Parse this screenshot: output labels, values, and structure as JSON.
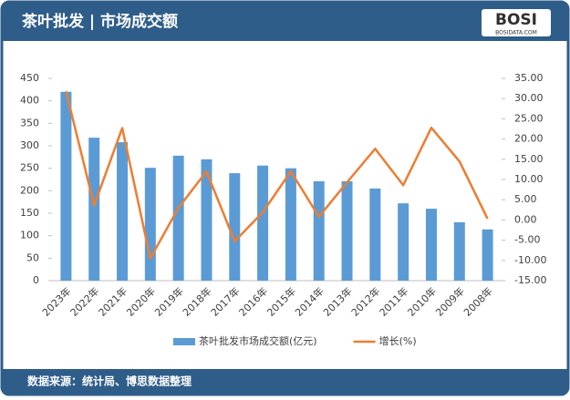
{
  "chart_data": {
    "type": "bar_line",
    "title": "茶叶批发 | 市场成交额",
    "source": "数据来源：统计局、博思数据整理",
    "categories": [
      "2023年",
      "2022年",
      "2021年",
      "2020年",
      "2019年",
      "2018年",
      "2017年",
      "2016年",
      "2015年",
      "2014年",
      "2013年",
      "2012年",
      "2011年",
      "2010年",
      "2009年",
      "2008年"
    ],
    "series": [
      {
        "name": "茶叶批发市场成交额(亿元)",
        "color": "#5b9bd5",
        "type": "bar",
        "values": [
          420,
          318,
          308,
          251,
          278,
          270,
          239,
          256,
          250,
          221,
          221,
          205,
          172,
          160,
          130,
          114
        ]
      },
      {
        "name": "增长(%)",
        "color": "#ed7d31",
        "type": "line",
        "axis": "y2",
        "values": [
          31.8,
          3.6,
          22.7,
          -9.5,
          3.0,
          12.0,
          -5.3,
          1.9,
          12.0,
          0.8,
          9.3,
          17.6,
          8.6,
          22.8,
          14.5,
          0.3
        ]
      }
    ],
    "ylim": [
      0,
      450
    ],
    "yticks": [
      0,
      50,
      100,
      150,
      200,
      250,
      300,
      350,
      400,
      450
    ],
    "y2lim": [
      -15,
      35
    ],
    "y2ticks": [
      {
        "value": -15,
        "label": "-15.00"
      },
      {
        "value": -10,
        "label": "-10.00"
      },
      {
        "value": -5,
        "label": "-5.00"
      },
      {
        "value": 0,
        "label": "0.00"
      },
      {
        "value": 5,
        "label": "5.00"
      },
      {
        "value": 10,
        "label": "10.00"
      },
      {
        "value": 15,
        "label": "15.00"
      },
      {
        "value": 20,
        "label": "20.00"
      },
      {
        "value": 25,
        "label": "25.00"
      },
      {
        "value": 30,
        "label": "30.00"
      },
      {
        "value": 35,
        "label": "35.00"
      }
    ]
  },
  "logo": {
    "name": "BOSI",
    "site": "BOSIDATA.COM"
  }
}
